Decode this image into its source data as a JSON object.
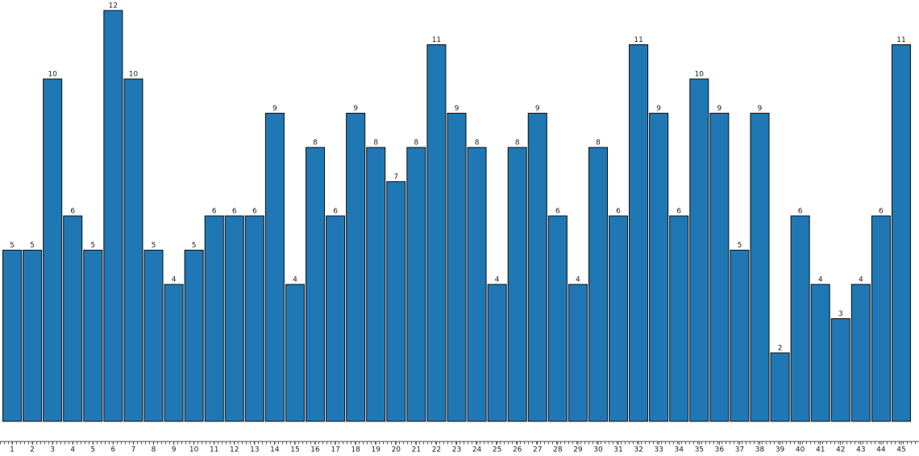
{
  "chart_data": {
    "type": "bar",
    "categories": [
      "1",
      "2",
      "3",
      "4",
      "5",
      "6",
      "7",
      "8",
      "9",
      "10",
      "11",
      "12",
      "13",
      "14",
      "15",
      "16",
      "17",
      "18",
      "19",
      "20",
      "21",
      "22",
      "23",
      "24",
      "25",
      "26",
      "27",
      "28",
      "29",
      "30",
      "31",
      "32",
      "33",
      "34",
      "35",
      "36",
      "37",
      "38",
      "39",
      "40",
      "41",
      "42",
      "43",
      "44",
      "45"
    ],
    "values": [
      5,
      5,
      10,
      6,
      5,
      12,
      10,
      5,
      4,
      5,
      6,
      6,
      6,
      9,
      4,
      8,
      6,
      9,
      8,
      7,
      8,
      11,
      9,
      8,
      4,
      8,
      9,
      6,
      4,
      8,
      6,
      11,
      9,
      6,
      10,
      9,
      5,
      9,
      2,
      6,
      4,
      3,
      4,
      6,
      11
    ],
    "color": "#1f77b4"
  }
}
